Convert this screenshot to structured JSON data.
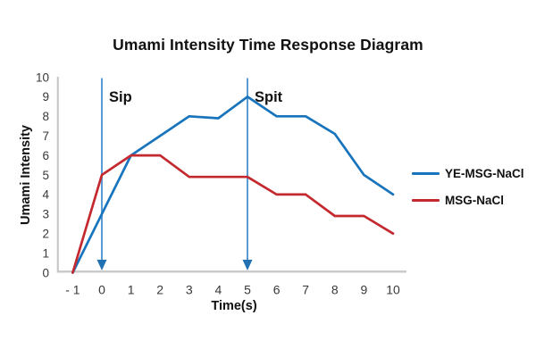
{
  "chart_data": {
    "type": "line",
    "title": "Umami Intensity Time Response Diagram",
    "xlabel": "Time(s)",
    "ylabel": "Umami Intensity",
    "xlim": [
      -1,
      10
    ],
    "ylim": [
      0,
      10
    ],
    "grid": false,
    "legend_position": "right",
    "x": [
      -1,
      0,
      1,
      2,
      3,
      4,
      5,
      6,
      7,
      8,
      9,
      10
    ],
    "x_tick_labels": [
      "- 1",
      "0",
      "1",
      "2",
      "3",
      "4",
      "5",
      "6",
      "7",
      "8",
      "9",
      "10"
    ],
    "y_ticks": [
      0,
      1,
      2,
      3,
      4,
      5,
      6,
      7,
      8,
      9,
      10
    ],
    "series": [
      {
        "name": "YE-MSG-NaCl",
        "color": "#1874BC",
        "values": [
          0,
          3,
          6,
          7,
          8,
          7.9,
          9,
          8,
          8,
          7.1,
          5,
          4
        ]
      },
      {
        "name": "MSG-NaCl",
        "color": "#C3292E",
        "values": [
          0,
          5,
          6,
          6,
          4.9,
          4.9,
          4.9,
          4,
          4,
          2.9,
          2.9,
          2
        ]
      }
    ],
    "annotations": [
      {
        "label": "Sip",
        "x": 0,
        "arrow": "down"
      },
      {
        "label": "Spit",
        "x": 5,
        "arrow": "down"
      }
    ],
    "colors": {
      "arrow_stem": "#5B9BD5",
      "arrow_head": "#2271B3",
      "axis_line": "#C8C8C8",
      "tick_text": "#383838",
      "text": "#111111"
    }
  }
}
